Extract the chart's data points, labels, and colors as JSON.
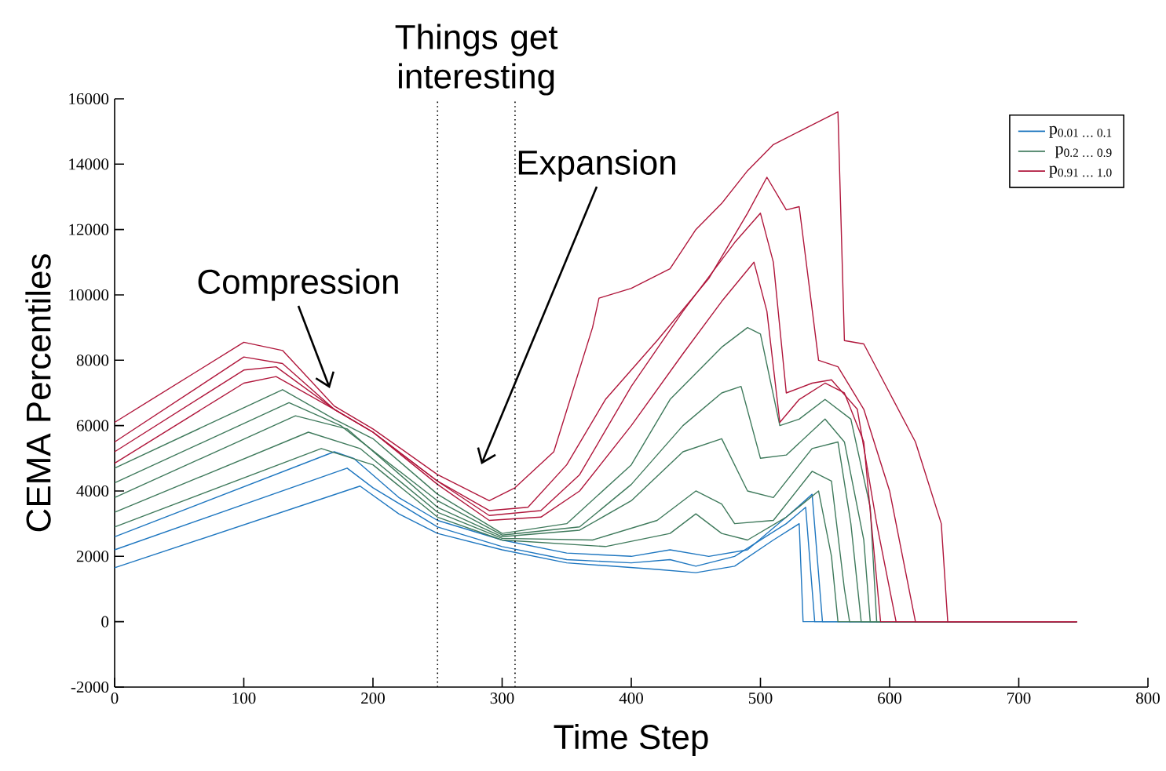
{
  "chart_data": {
    "type": "line",
    "xlabel": "Time Step",
    "ylabel": "CEMA Percentiles",
    "xlim": [
      0,
      800
    ],
    "ylim": [
      -2000,
      16000
    ],
    "xticks": [
      0,
      100,
      200,
      300,
      400,
      500,
      600,
      700,
      800
    ],
    "yticks": [
      -2000,
      0,
      2000,
      4000,
      6000,
      8000,
      10000,
      12000,
      14000,
      16000
    ],
    "legend": "top right",
    "ref_lines": [
      {
        "axis": "x",
        "value": 250,
        "line_style": "dotted",
        "color": "#000000"
      },
      {
        "axis": "x",
        "value": 310,
        "line_style": "dotted",
        "color": "#000000"
      }
    ],
    "annotations": [
      "Things get interesting",
      "Compression",
      "Expansion"
    ],
    "series": [
      {
        "name": "p$_{0.01 … 0.1}$",
        "color": "#1f77c0",
        "x": [
          0,
          190,
          220,
          250,
          300,
          350,
          420,
          450,
          480,
          510,
          530,
          533,
          745
        ],
        "values": [
          1650,
          4150,
          3300,
          2700,
          2200,
          1800,
          1600,
          1500,
          1700,
          2500,
          3000,
          0,
          0
        ]
      },
      {
        "color": "#1f77c0",
        "x": [
          0,
          180,
          200,
          250,
          300,
          350,
          400,
          430,
          450,
          480,
          520,
          535,
          542,
          745
        ],
        "values": [
          2200,
          4700,
          4100,
          2900,
          2300,
          1900,
          1800,
          1900,
          1700,
          2000,
          3000,
          3500,
          0,
          0
        ]
      },
      {
        "color": "#1f77c0",
        "x": [
          0,
          170,
          185,
          220,
          250,
          300,
          350,
          400,
          430,
          460,
          490,
          520,
          540,
          548,
          745
        ],
        "values": [
          2600,
          5200,
          5000,
          3800,
          3100,
          2500,
          2100,
          2000,
          2200,
          2000,
          2200,
          3200,
          3900,
          0,
          0
        ]
      },
      {
        "name": "p$_{0.2 … 0.9}$",
        "color": "#3f7a5c",
        "x": [
          0,
          160,
          200,
          250,
          300,
          380,
          430,
          450,
          470,
          490,
          520,
          545,
          555,
          560,
          745
        ],
        "values": [
          2900,
          5300,
          4800,
          3200,
          2500,
          2300,
          2700,
          3300,
          2700,
          2500,
          3200,
          4000,
          2000,
          0,
          0
        ]
      },
      {
        "color": "#3f7a5c",
        "x": [
          0,
          150,
          190,
          250,
          300,
          370,
          420,
          450,
          470,
          480,
          510,
          540,
          555,
          565,
          569,
          745
        ],
        "values": [
          3350,
          5800,
          5300,
          3350,
          2550,
          2500,
          3100,
          4000,
          3600,
          3000,
          3100,
          4600,
          4300,
          1000,
          0,
          0
        ]
      },
      {
        "color": "#3f7a5c",
        "x": [
          0,
          140,
          180,
          250,
          300,
          360,
          400,
          440,
          470,
          490,
          510,
          540,
          560,
          570,
          578,
          745
        ],
        "values": [
          3800,
          6300,
          5900,
          3500,
          2600,
          2800,
          3700,
          5200,
          5600,
          4000,
          3800,
          5300,
          5500,
          3000,
          0,
          0
        ]
      },
      {
        "color": "#3f7a5c",
        "x": [
          0,
          135,
          175,
          250,
          300,
          360,
          400,
          440,
          470,
          485,
          500,
          520,
          550,
          565,
          580,
          585,
          745
        ],
        "values": [
          4250,
          6700,
          6000,
          3700,
          2650,
          2900,
          4200,
          6000,
          7000,
          7200,
          5000,
          5100,
          6200,
          5500,
          2500,
          0,
          0
        ]
      },
      {
        "color": "#3f7a5c",
        "x": [
          0,
          130,
          170,
          200,
          250,
          300,
          350,
          400,
          430,
          470,
          490,
          500,
          515,
          530,
          550,
          570,
          585,
          590,
          745
        ],
        "values": [
          4700,
          7100,
          6200,
          5600,
          3900,
          2700,
          3000,
          4800,
          6800,
          8400,
          9000,
          8800,
          6000,
          6200,
          6800,
          6200,
          3500,
          0,
          0
        ]
      },
      {
        "name": "p$_{0.91 … 1.0}$",
        "color": "#b0173c",
        "x": [
          0,
          100,
          125,
          170,
          200,
          250,
          290,
          330,
          360,
          400,
          440,
          470,
          495,
          505,
          515,
          530,
          550,
          565,
          580,
          593,
          745
        ],
        "values": [
          4850,
          7300,
          7500,
          6500,
          5800,
          4200,
          3100,
          3200,
          4000,
          6000,
          8200,
          9800,
          11000,
          9500,
          6100,
          6800,
          7300,
          7000,
          5500,
          0,
          0
        ]
      },
      {
        "color": "#b0173c",
        "x": [
          0,
          100,
          125,
          170,
          200,
          250,
          290,
          330,
          360,
          400,
          440,
          480,
          500,
          510,
          520,
          540,
          555,
          575,
          590,
          605,
          745
        ],
        "values": [
          5200,
          7700,
          7800,
          6500,
          5800,
          4300,
          3250,
          3400,
          4500,
          7200,
          9500,
          11600,
          12500,
          11000,
          7000,
          7300,
          7400,
          6500,
          3000,
          0,
          0
        ]
      },
      {
        "color": "#b0173c",
        "x": [
          0,
          100,
          130,
          170,
          200,
          250,
          290,
          320,
          350,
          380,
          420,
          460,
          490,
          505,
          520,
          530,
          545,
          560,
          580,
          600,
          620,
          745
        ],
        "values": [
          5500,
          8100,
          7900,
          6500,
          5800,
          4300,
          3400,
          3500,
          4800,
          6800,
          8600,
          10500,
          12500,
          13600,
          12600,
          12700,
          8000,
          7800,
          6500,
          4000,
          0,
          0
        ]
      },
      {
        "color": "#b0173c",
        "x": [
          0,
          100,
          130,
          170,
          200,
          250,
          290,
          310,
          340,
          370,
          375,
          400,
          430,
          450,
          470,
          490,
          510,
          530,
          560,
          565,
          580,
          600,
          620,
          640,
          645,
          745
        ],
        "values": [
          6100,
          8550,
          8300,
          6600,
          5900,
          4500,
          3700,
          4100,
          5200,
          9000,
          9900,
          10200,
          10800,
          12000,
          12800,
          13800,
          14600,
          15000,
          15600,
          8600,
          8500,
          7000,
          5500,
          3000,
          0,
          0
        ]
      }
    ]
  }
}
